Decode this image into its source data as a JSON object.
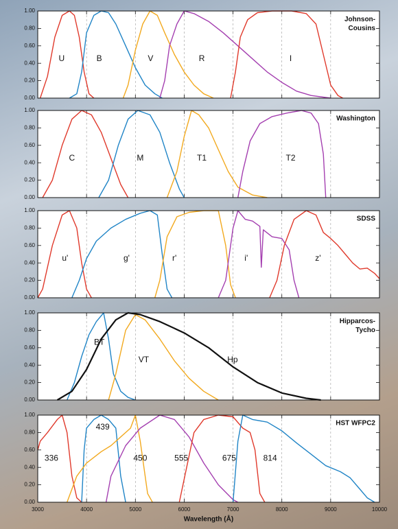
{
  "chart_data": [
    {
      "type": "line",
      "title": "Johnson-Cousins",
      "xlim": [
        3000,
        10000
      ],
      "ylim": [
        0,
        1
      ],
      "xticks": [
        3000,
        4000,
        5000,
        6000,
        7000,
        8000,
        9000,
        10000
      ],
      "yticks": [
        {
          "value": 0,
          "label": "0.00"
        },
        {
          "value": 0.2,
          "label": "0.20"
        },
        {
          "value": 0.4,
          "label": "0.40"
        },
        {
          "value": 0.6,
          "label": "0.60"
        },
        {
          "value": 0.8,
          "label": "0.80"
        },
        {
          "value": 1,
          "label": "1.00"
        }
      ],
      "series": [
        {
          "name": "U",
          "color": "#e0392b",
          "x": [
            3050,
            3200,
            3350,
            3500,
            3650,
            3750,
            3850,
            3950,
            4050,
            4150
          ],
          "values": [
            0,
            0.25,
            0.7,
            0.95,
            1.0,
            0.95,
            0.7,
            0.3,
            0.05,
            0
          ]
        },
        {
          "name": "B",
          "color": "#1f84c6",
          "x": [
            3650,
            3800,
            3900,
            4000,
            4150,
            4300,
            4450,
            4600,
            4800,
            5000,
            5200,
            5400,
            5550
          ],
          "values": [
            0,
            0.05,
            0.3,
            0.75,
            0.95,
            1.0,
            0.98,
            0.85,
            0.6,
            0.35,
            0.15,
            0.05,
            0
          ]
        },
        {
          "name": "V",
          "color": "#f2a91e",
          "x": [
            4750,
            4850,
            5000,
            5150,
            5300,
            5450,
            5600,
            5800,
            6000,
            6200,
            6400,
            6600
          ],
          "values": [
            0,
            0.15,
            0.55,
            0.85,
            1.0,
            0.95,
            0.75,
            0.5,
            0.3,
            0.15,
            0.05,
            0
          ]
        },
        {
          "name": "R",
          "color": "#a43fb0",
          "x": [
            5500,
            5600,
            5700,
            5850,
            6000,
            6200,
            6500,
            6800,
            7100,
            7400,
            7700,
            8000,
            8300,
            8600,
            9000
          ],
          "values": [
            0,
            0.2,
            0.6,
            0.85,
            1.0,
            0.97,
            0.88,
            0.75,
            0.6,
            0.45,
            0.3,
            0.18,
            0.08,
            0.03,
            0
          ]
        },
        {
          "name": "I",
          "color": "#e0392b",
          "x": [
            6950,
            7050,
            7150,
            7300,
            7500,
            7800,
            8200,
            8500,
            8700,
            8850,
            9000,
            9150,
            9250
          ],
          "values": [
            0,
            0.3,
            0.7,
            0.9,
            0.98,
            1.0,
            1.0,
            0.97,
            0.85,
            0.5,
            0.15,
            0.03,
            0
          ]
        }
      ]
    },
    {
      "type": "line",
      "title": "Washington",
      "xlim": [
        3000,
        10000
      ],
      "ylim": [
        0,
        1
      ],
      "xticks": [
        3000,
        4000,
        5000,
        6000,
        7000,
        8000,
        9000,
        10000
      ],
      "yticks": [
        {
          "value": 0,
          "label": "0.00"
        },
        {
          "value": 0.2,
          "label": "0.20"
        },
        {
          "value": 0.4,
          "label": "0.40"
        },
        {
          "value": 0.6,
          "label": "0.60"
        },
        {
          "value": 0.8,
          "label": "0.80"
        },
        {
          "value": 1,
          "label": "1.00"
        }
      ],
      "series": [
        {
          "name": "C",
          "color": "#e0392b",
          "x": [
            3100,
            3300,
            3500,
            3700,
            3900,
            4100,
            4300,
            4500,
            4700,
            4850
          ],
          "values": [
            0,
            0.2,
            0.6,
            0.9,
            1.0,
            0.95,
            0.75,
            0.45,
            0.15,
            0
          ]
        },
        {
          "name": "M",
          "color": "#1f84c6",
          "x": [
            4250,
            4450,
            4650,
            4850,
            5050,
            5300,
            5500,
            5700,
            5900,
            6000
          ],
          "values": [
            0,
            0.2,
            0.6,
            0.9,
            1.0,
            0.95,
            0.75,
            0.4,
            0.1,
            0
          ]
        },
        {
          "name": "T1",
          "color": "#f2a91e",
          "x": [
            5650,
            5850,
            6000,
            6150,
            6300,
            6500,
            6700,
            6900,
            7100,
            7400,
            7700
          ],
          "values": [
            0,
            0.3,
            0.7,
            1.0,
            0.95,
            0.8,
            0.55,
            0.3,
            0.12,
            0.03,
            0
          ]
        },
        {
          "name": "T2",
          "color": "#a43fb0",
          "x": [
            7100,
            7200,
            7350,
            7550,
            7800,
            8100,
            8400,
            8600,
            8750,
            8850,
            8900
          ],
          "values": [
            0,
            0.3,
            0.65,
            0.85,
            0.93,
            0.97,
            1.0,
            0.97,
            0.85,
            0.5,
            0
          ]
        }
      ]
    },
    {
      "type": "line",
      "title": "SDSS",
      "xlim": [
        3000,
        10000
      ],
      "ylim": [
        0,
        1
      ],
      "xticks": [
        3000,
        4000,
        5000,
        6000,
        7000,
        8000,
        9000,
        10000
      ],
      "yticks": [
        {
          "value": 0,
          "label": "0.00"
        },
        {
          "value": 0.2,
          "label": "0.20"
        },
        {
          "value": 0.4,
          "label": "0.40"
        },
        {
          "value": 0.6,
          "label": "0.60"
        },
        {
          "value": 0.8,
          "label": "0.80"
        },
        {
          "value": 1,
          "label": "1.00"
        }
      ],
      "series": [
        {
          "name": "u'",
          "color": "#e0392b",
          "x": [
            3000,
            3100,
            3300,
            3500,
            3650,
            3800,
            3900,
            4000,
            4100
          ],
          "values": [
            0,
            0.1,
            0.6,
            0.95,
            1.0,
            0.8,
            0.4,
            0.1,
            0
          ]
        },
        {
          "name": "g'",
          "color": "#1f84c6",
          "x": [
            3700,
            3850,
            4000,
            4200,
            4500,
            4800,
            5100,
            5300,
            5450,
            5550,
            5650,
            5750
          ],
          "values": [
            0,
            0.2,
            0.45,
            0.65,
            0.8,
            0.9,
            0.97,
            1.0,
            0.95,
            0.5,
            0.1,
            0
          ]
        },
        {
          "name": "r'",
          "color": "#f2a91e",
          "x": [
            5400,
            5500,
            5650,
            5850,
            6100,
            6400,
            6700,
            6850,
            6950,
            7050
          ],
          "values": [
            0,
            0.2,
            0.7,
            0.93,
            0.98,
            1.0,
            1.0,
            0.6,
            0.15,
            0
          ]
        },
        {
          "name": "i'",
          "color": "#a43fb0",
          "x": [
            6700,
            6850,
            7000,
            7100,
            7250,
            7400,
            7550,
            7580,
            7620,
            7800,
            8000,
            8150,
            8250,
            8350
          ],
          "values": [
            0,
            0.2,
            0.8,
            1.0,
            0.9,
            0.88,
            0.82,
            0.35,
            0.78,
            0.7,
            0.68,
            0.55,
            0.2,
            0
          ]
        },
        {
          "name": "z'",
          "color": "#e0392b",
          "x": [
            7750,
            7900,
            8050,
            8250,
            8500,
            8700,
            8850,
            9000,
            9150,
            9300,
            9450,
            9600,
            9750,
            9900,
            10000
          ],
          "values": [
            0,
            0.2,
            0.6,
            0.9,
            1.0,
            0.95,
            0.75,
            0.68,
            0.6,
            0.5,
            0.4,
            0.33,
            0.34,
            0.28,
            0.22
          ]
        }
      ]
    },
    {
      "type": "line",
      "title": "Hipparcos-Tycho",
      "xlim": [
        3000,
        10000
      ],
      "ylim": [
        0,
        1
      ],
      "xticks": [
        3000,
        4000,
        5000,
        6000,
        7000,
        8000,
        9000,
        10000
      ],
      "yticks": [
        {
          "value": 0,
          "label": "0.00"
        },
        {
          "value": 0.2,
          "label": "0.20"
        },
        {
          "value": 0.4,
          "label": "0.40"
        },
        {
          "value": 0.6,
          "label": "0.60"
        },
        {
          "value": 0.8,
          "label": "0.80"
        },
        {
          "value": 1,
          "label": "1.00"
        }
      ],
      "series": [
        {
          "name": "BT",
          "color": "#1f84c6",
          "x": [
            3600,
            3750,
            3900,
            4050,
            4200,
            4350,
            4450,
            4550,
            4700,
            4850,
            5000
          ],
          "values": [
            0,
            0.2,
            0.5,
            0.75,
            0.9,
            1.0,
            0.7,
            0.3,
            0.1,
            0.03,
            0
          ]
        },
        {
          "name": "VT",
          "color": "#f2a91e",
          "x": [
            4450,
            4600,
            4800,
            5000,
            5200,
            5500,
            5800,
            6100,
            6400,
            6700
          ],
          "values": [
            0,
            0.3,
            0.8,
            0.98,
            0.92,
            0.7,
            0.45,
            0.25,
            0.1,
            0
          ]
        },
        {
          "name": "Hp",
          "color": "#111111",
          "x": [
            3400,
            3700,
            4000,
            4300,
            4600,
            4850,
            5100,
            5500,
            6000,
            6500,
            7000,
            7500,
            8000,
            8500,
            8800
          ],
          "values": [
            0,
            0.1,
            0.35,
            0.7,
            0.92,
            1.0,
            0.98,
            0.9,
            0.77,
            0.6,
            0.38,
            0.2,
            0.08,
            0.02,
            0
          ]
        }
      ]
    },
    {
      "type": "line",
      "title": "HST WFPC2",
      "xlabel": "Wavelength (Å)",
      "xlim": [
        3000,
        10000
      ],
      "ylim": [
        0,
        1
      ],
      "xticks": [
        3000,
        4000,
        5000,
        6000,
        7000,
        8000,
        9000,
        10000
      ],
      "yticks": [
        {
          "value": 0,
          "label": "0.00"
        },
        {
          "value": 0.2,
          "label": "0.20"
        },
        {
          "value": 0.4,
          "label": "0.40"
        },
        {
          "value": 0.6,
          "label": "0.60"
        },
        {
          "value": 0.8,
          "label": "0.80"
        },
        {
          "value": 1,
          "label": "1.00"
        }
      ],
      "series": [
        {
          "name": "336",
          "color": "#e0392b",
          "x": [
            3000,
            3050,
            3200,
            3400,
            3500,
            3600,
            3700,
            3800,
            3900
          ],
          "values": [
            0.6,
            0.7,
            0.8,
            0.95,
            1.0,
            0.8,
            0.3,
            0.05,
            0
          ]
        },
        {
          "name": "439",
          "color": "#1f84c6",
          "x": [
            3900,
            3950,
            4000,
            4150,
            4300,
            4450,
            4600,
            4700,
            4800
          ],
          "values": [
            0,
            0.6,
            0.85,
            0.95,
            1.0,
            0.95,
            0.85,
            0.3,
            0
          ]
        },
        {
          "name": "450",
          "color": "#f2a91e",
          "x": [
            3600,
            3800,
            4000,
            4300,
            4500,
            4700,
            4900,
            5000,
            5100,
            5250,
            5350
          ],
          "values": [
            0,
            0.3,
            0.45,
            0.58,
            0.65,
            0.75,
            0.85,
            1.0,
            0.7,
            0.1,
            0
          ]
        },
        {
          "name": "555",
          "color": "#a43fb0",
          "x": [
            4400,
            4500,
            4800,
            5100,
            5500,
            5800,
            6100,
            6400,
            6700,
            7000,
            7100
          ],
          "values": [
            0,
            0.3,
            0.65,
            0.85,
            1.0,
            0.95,
            0.75,
            0.45,
            0.2,
            0.03,
            0
          ]
        },
        {
          "name": "675",
          "color": "#e0392b",
          "x": [
            5900,
            6050,
            6200,
            6400,
            6700,
            7000,
            7200,
            7350,
            7450,
            7550,
            7650
          ],
          "values": [
            0,
            0.4,
            0.8,
            0.95,
            1.0,
            0.98,
            0.85,
            0.8,
            0.6,
            0.1,
            0
          ]
        },
        {
          "name": "814",
          "color": "#1f84c6",
          "x": [
            7000,
            7100,
            7200,
            7400,
            7700,
            8000,
            8300,
            8600,
            8900,
            9200,
            9400,
            9600,
            9750,
            9900
          ],
          "values": [
            0,
            0.7,
            1.0,
            0.95,
            0.92,
            0.82,
            0.68,
            0.55,
            0.42,
            0.35,
            0.28,
            0.15,
            0.05,
            0
          ]
        }
      ]
    }
  ]
}
